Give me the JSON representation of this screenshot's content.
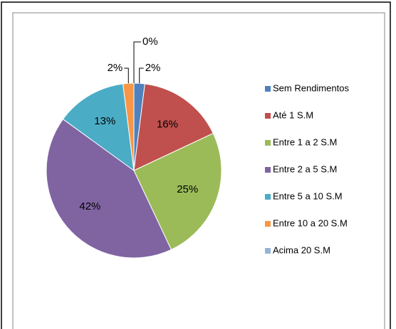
{
  "chart_data": {
    "type": "pie",
    "categories": [
      "Sem Rendimentos",
      "Até 1 S.M",
      "Entre 1 a 2 S.M",
      "Entre 2 a 5 S.M",
      "Entre 5 a 10 S.M",
      "Entre 10 a 20 S.M",
      "Acima 20 S.M"
    ],
    "values": [
      2,
      16,
      25,
      42,
      13,
      2,
      0
    ],
    "value_labels": [
      "2%",
      "16%",
      "25%",
      "42%",
      "13%",
      "2%",
      "0%"
    ],
    "colors": [
      "#4F81BD",
      "#C0504D",
      "#9BBB59",
      "#8064A2",
      "#4BACC6",
      "#F79646",
      "#95B3D7"
    ],
    "legend": "right"
  }
}
